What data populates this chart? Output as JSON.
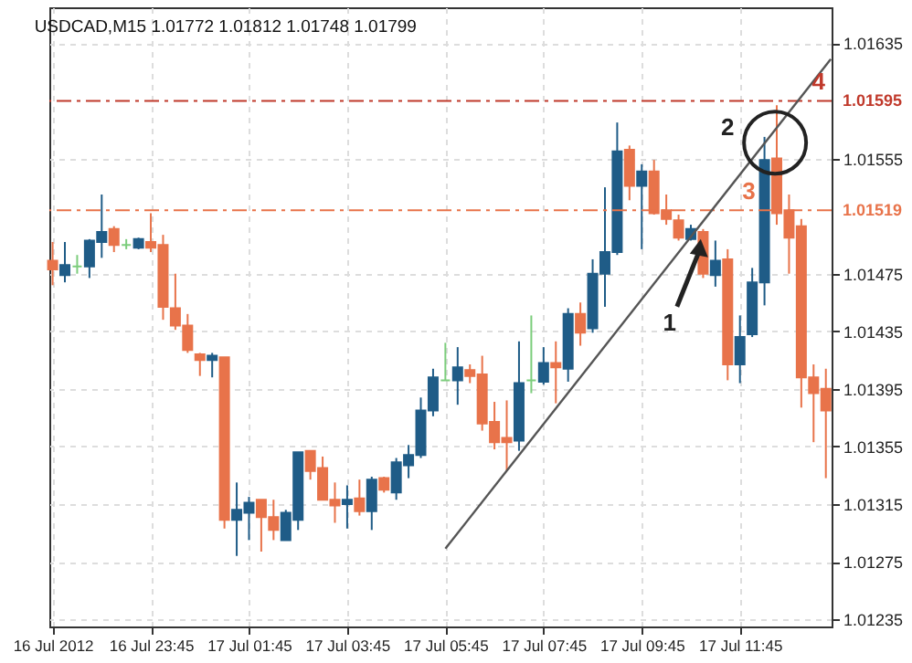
{
  "chart_data": {
    "type": "candlestick",
    "title": "USDCAD,M15  1.01772 1.01812 1.01748 1.01799",
    "x": [
      "2012-07-16T21:45",
      "2012-07-16T22:00",
      "2012-07-16T22:15",
      "2012-07-16T22:30",
      "2012-07-16T22:45",
      "2012-07-16T23:00",
      "2012-07-16T23:15",
      "2012-07-16T23:30",
      "2012-07-16T23:45",
      "2012-07-17T00:00",
      "2012-07-17T00:15",
      "2012-07-17T00:30",
      "2012-07-17T00:45",
      "2012-07-17T01:00",
      "2012-07-17T01:15",
      "2012-07-17T01:30",
      "2012-07-17T01:45",
      "2012-07-17T02:00",
      "2012-07-17T02:15",
      "2012-07-17T02:30",
      "2012-07-17T02:45",
      "2012-07-17T03:00",
      "2012-07-17T03:15",
      "2012-07-17T03:30",
      "2012-07-17T03:45",
      "2012-07-17T04:00",
      "2012-07-17T04:15",
      "2012-07-17T04:30",
      "2012-07-17T04:45",
      "2012-07-17T05:00",
      "2012-07-17T05:15",
      "2012-07-17T05:30",
      "2012-07-17T05:45",
      "2012-07-17T06:00",
      "2012-07-17T06:15",
      "2012-07-17T06:30",
      "2012-07-17T06:45",
      "2012-07-17T07:00",
      "2012-07-17T07:15",
      "2012-07-17T07:30",
      "2012-07-17T07:45",
      "2012-07-17T08:00",
      "2012-07-17T08:15",
      "2012-07-17T08:30",
      "2012-07-17T08:45",
      "2012-07-17T09:00",
      "2012-07-17T09:15",
      "2012-07-17T09:30",
      "2012-07-17T09:45",
      "2012-07-17T10:00",
      "2012-07-17T10:15",
      "2012-07-17T10:30",
      "2012-07-17T10:45",
      "2012-07-17T11:00",
      "2012-07-17T11:15",
      "2012-07-17T11:30",
      "2012-07-17T11:45",
      "2012-07-17T12:00",
      "2012-07-17T12:15",
      "2012-07-17T12:30",
      "2012-07-17T12:45",
      "2012-07-17T13:00",
      "2012-07-17T13:15",
      "2012-07-17T13:30"
    ],
    "ohlc": [
      [
        1.01484,
        1.01497,
        1.01467,
        1.01478
      ],
      [
        1.01474,
        1.01497,
        1.01469,
        1.01481
      ],
      [
        1.0148,
        1.01488,
        1.01475,
        1.0148
      ],
      [
        1.0148,
        1.01499,
        1.01472,
        1.01498
      ],
      [
        1.01497,
        1.0153,
        1.01486,
        1.01504
      ],
      [
        1.01506,
        1.01508,
        1.0149,
        1.01495
      ],
      [
        1.01495,
        1.01499,
        1.01492,
        1.01495
      ],
      [
        1.01493,
        1.015,
        1.01492,
        1.01499
      ],
      [
        1.01497,
        1.01517,
        1.0149,
        1.01493
      ],
      [
        1.01495,
        1.01502,
        1.01443,
        1.01452
      ],
      [
        1.01451,
        1.01475,
        1.01436,
        1.01439
      ],
      [
        1.01439,
        1.01447,
        1.0142,
        1.01422
      ],
      [
        1.01419,
        1.0142,
        1.01404,
        1.01415
      ],
      [
        1.01415,
        1.0142,
        1.01403,
        1.01418
      ],
      [
        1.01417,
        1.01417,
        1.01298,
        1.01304
      ],
      [
        1.01304,
        1.0133,
        1.01279,
        1.01311
      ],
      [
        1.01309,
        1.0132,
        1.0129,
        1.01316
      ],
      [
        1.01318,
        1.01318,
        1.01282,
        1.01306
      ],
      [
        1.01306,
        1.01318,
        1.0129,
        1.01297
      ],
      [
        1.0129,
        1.01311,
        1.0129,
        1.01309
      ],
      [
        1.01304,
        1.01351,
        1.01297,
        1.01351
      ],
      [
        1.01352,
        1.01352,
        1.01332,
        1.01338
      ],
      [
        1.0134,
        1.01348,
        1.01318,
        1.01318
      ],
      [
        1.01318,
        1.0133,
        1.01302,
        1.01314
      ],
      [
        1.01315,
        1.01328,
        1.01298,
        1.01318
      ],
      [
        1.01319,
        1.01332,
        1.01307,
        1.0131
      ],
      [
        1.0131,
        1.01334,
        1.01297,
        1.01332
      ],
      [
        1.01333,
        1.01334,
        1.01323,
        1.01325
      ],
      [
        1.01323,
        1.01347,
        1.01318,
        1.01344
      ],
      [
        1.01342,
        1.01356,
        1.01333,
        1.01349
      ],
      [
        1.01349,
        1.01389,
        1.01347,
        1.0138
      ],
      [
        1.0138,
        1.01409,
        1.01376,
        1.01403
      ],
      [
        1.01401,
        1.01427,
        1.01401,
        1.01401
      ],
      [
        1.01401,
        1.01424,
        1.01384,
        1.0141
      ],
      [
        1.01408,
        1.01412,
        1.01399,
        1.01404
      ],
      [
        1.01405,
        1.01418,
        1.01366,
        1.01371
      ],
      [
        1.01372,
        1.01386,
        1.01353,
        1.01358
      ],
      [
        1.01361,
        1.01387,
        1.01338,
        1.01358
      ],
      [
        1.01359,
        1.01428,
        1.01352,
        1.01399
      ],
      [
        1.01401,
        1.01446,
        1.01392,
        1.01401
      ],
      [
        1.014,
        1.01424,
        1.01398,
        1.01413
      ],
      [
        1.01413,
        1.01428,
        1.01385,
        1.0141
      ],
      [
        1.01409,
        1.01451,
        1.014,
        1.01447
      ],
      [
        1.01447,
        1.01455,
        1.01425,
        1.01434
      ],
      [
        1.01437,
        1.01485,
        1.01434,
        1.01475
      ],
      [
        1.01475,
        1.01535,
        1.01452,
        1.0149
      ],
      [
        1.0149,
        1.0158,
        1.01488,
        1.0156
      ],
      [
        1.01561,
        1.01564,
        1.01526,
        1.01536
      ],
      [
        1.01536,
        1.01551,
        1.01492,
        1.01546
      ],
      [
        1.01546,
        1.01554,
        1.01516,
        1.01517
      ],
      [
        1.01519,
        1.0153,
        1.01509,
        1.01513
      ],
      [
        1.01512,
        1.01516,
        1.01498,
        1.015
      ],
      [
        1.01499,
        1.01509,
        1.01498,
        1.01506
      ],
      [
        1.01504,
        1.01506,
        1.01472,
        1.01475
      ],
      [
        1.01474,
        1.01498,
        1.01466,
        1.01484
      ],
      [
        1.01485,
        1.01492,
        1.01401,
        1.01412
      ],
      [
        1.01412,
        1.01446,
        1.01399,
        1.01431
      ],
      [
        1.01433,
        1.01479,
        1.01431,
        1.01469
      ],
      [
        1.01469,
        1.0157,
        1.01453,
        1.01554
      ],
      [
        1.01555,
        1.01592,
        1.01509,
        1.01517
      ],
      [
        1.01519,
        1.0153,
        1.01475,
        1.015
      ],
      [
        1.01508,
        1.01513,
        1.01382,
        1.01403
      ],
      [
        1.01403,
        1.01412,
        1.01358,
        1.01392
      ],
      [
        1.01395,
        1.01409,
        1.01333,
        1.0138
      ]
    ],
    "colors": [
      "#e8734a",
      "#1f5c87",
      "#7ccd7c",
      "#1f5c87",
      "#1f5c87",
      "#e8734a",
      "#7ccd7c",
      "#1f5c87",
      "#e8734a",
      "#e8734a",
      "#e8734a",
      "#e8734a",
      "#e8734a",
      "#1f5c87",
      "#e8734a",
      "#1f5c87",
      "#1f5c87",
      "#e8734a",
      "#e8734a",
      "#1f5c87",
      "#1f5c87",
      "#e8734a",
      "#e8734a",
      "#e8734a",
      "#1f5c87",
      "#e8734a",
      "#1f5c87",
      "#e8734a",
      "#1f5c87",
      "#1f5c87",
      "#1f5c87",
      "#1f5c87",
      "#7ccd7c",
      "#1f5c87",
      "#e8734a",
      "#e8734a",
      "#e8734a",
      "#e8734a",
      "#1f5c87",
      "#7ccd7c",
      "#1f5c87",
      "#e8734a",
      "#1f5c87",
      "#e8734a",
      "#1f5c87",
      "#1f5c87",
      "#1f5c87",
      "#e8734a",
      "#1f5c87",
      "#e8734a",
      "#e8734a",
      "#e8734a",
      "#1f5c87",
      "#e8734a",
      "#1f5c87",
      "#e8734a",
      "#1f5c87",
      "#1f5c87",
      "#1f5c87",
      "#e8734a",
      "#e8734a",
      "#e8734a",
      "#e8734a",
      "#e8734a"
    ],
    "series": [
      {
        "type": "line",
        "color": "#555555",
        "x": [
          "2012-07-17T05:45",
          "2012-07-17T13:36"
        ],
        "values": [
          1.01284,
          1.01624
        ]
      }
    ],
    "xlim": [
      "2012-07-16T21:41",
      "2012-07-17T13:37"
    ],
    "xticks": [
      {
        "value": "2012-07-16T21:45",
        "label": "16 Jul 2012"
      },
      {
        "value": "2012-07-16T23:45",
        "label": "16 Jul 23:45"
      },
      {
        "value": "2012-07-17T01:45",
        "label": "17 Jul 01:45"
      },
      {
        "value": "2012-07-17T03:45",
        "label": "17 Jul 03:45"
      },
      {
        "value": "2012-07-17T05:45",
        "label": "17 Jul 05:45"
      },
      {
        "value": "2012-07-17T07:45",
        "label": "17 Jul 07:45"
      },
      {
        "value": "2012-07-17T09:45",
        "label": "17 Jul 09:45"
      },
      {
        "value": "2012-07-17T11:45",
        "label": "17 Jul 11:45"
      }
    ],
    "ylim": [
      1.0123,
      1.0166
    ],
    "yticks": [
      1.01635,
      1.01555,
      1.01475,
      1.01435,
      1.01395,
      1.01355,
      1.01315,
      1.01275,
      1.01235
    ],
    "grid": true,
    "ref_lines": [
      {
        "axis": "y",
        "value": 1.01595,
        "label": "1.01595",
        "color": "#c0392b",
        "line_style": "dashed"
      },
      {
        "axis": "y",
        "value": 1.01519,
        "label": "1.01519",
        "color": "#e8734a",
        "line_style": "dashed"
      }
    ],
    "annotations": [
      "1",
      "2",
      {
        "text": "3",
        "x": "2012-07-17T11:56",
        "y": 1.01519
      },
      {
        "text": "4",
        "x": "2012-07-17T13:21",
        "y": 1.01595
      }
    ]
  }
}
